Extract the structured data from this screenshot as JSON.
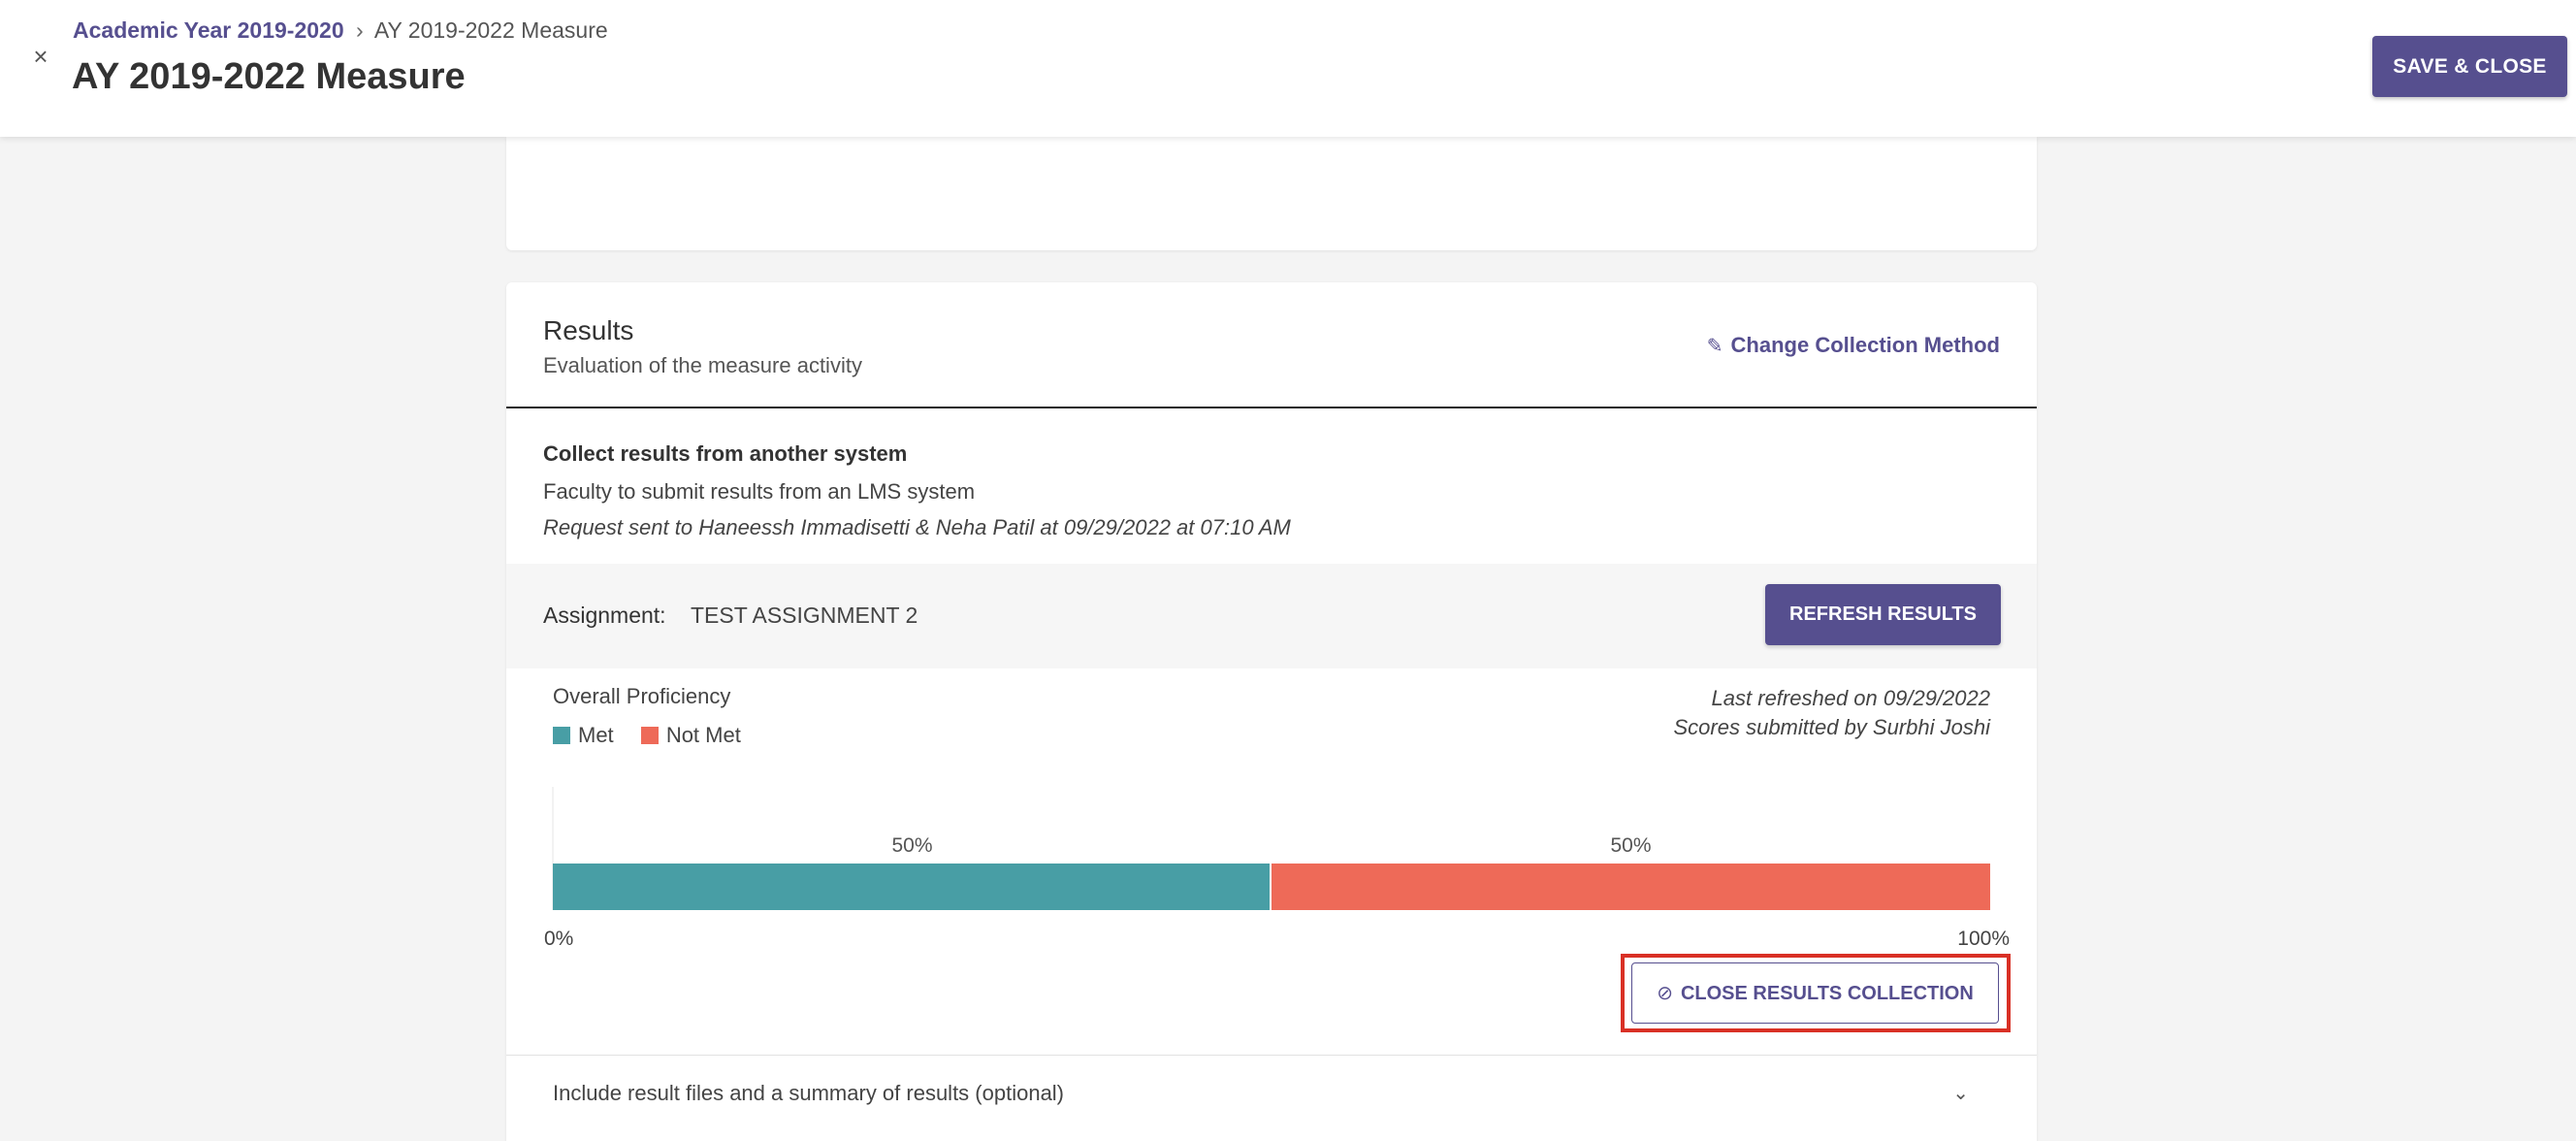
{
  "header": {
    "breadcrumb": {
      "parent": "Academic Year 2019-2020",
      "separator": "›",
      "current": "AY 2019-2022 Measure"
    },
    "title": "AY 2019-2022 Measure",
    "close_icon": "close-icon",
    "close_glyph": "×",
    "save_label": "SAVE & CLOSE"
  },
  "results": {
    "title": "Results",
    "subtitle": "Evaluation of the measure activity",
    "change_method_label": "Change Collection Method",
    "change_method_icon": "pencil-icon",
    "collect": {
      "title": "Collect results from another system",
      "description": "Faculty to submit results from an LMS system",
      "request": "Request sent to Haneessh Immadisetti & Neha Patil at 09/29/2022 at 07:10 AM"
    },
    "assignment": {
      "label": "Assignment:",
      "value": "TEST ASSIGNMENT 2"
    },
    "refresh_label": "REFRESH RESULTS",
    "overall_label": "Overall Proficiency",
    "last_refreshed": "Last refreshed on 09/29/2022",
    "scores_submitted": "Scores submitted by Surbhi Joshi",
    "close_collection_label": "CLOSE RESULTS COLLECTION",
    "close_collection_icon": "ban-icon",
    "include_label": "Include result files and a summary of results (optional)",
    "include_icon": "chevron-down-icon"
  },
  "colors": {
    "accent": "#564f8f",
    "met": "#489ea5",
    "not_met": "#ee6a58",
    "highlight": "#d93025"
  },
  "chart_data": {
    "type": "bar",
    "orientation": "horizontal-stacked",
    "title": "Overall Proficiency",
    "series": [
      {
        "name": "Met",
        "values": [
          50
        ],
        "color": "#489ea5"
      },
      {
        "name": "Not Met",
        "values": [
          50
        ],
        "color": "#ee6a58"
      }
    ],
    "data_labels": [
      "50%",
      "50%"
    ],
    "xlim": [
      0,
      100
    ],
    "tick_labels": [
      "0%",
      "100%"
    ],
    "legend": "top-left",
    "grid": false
  }
}
